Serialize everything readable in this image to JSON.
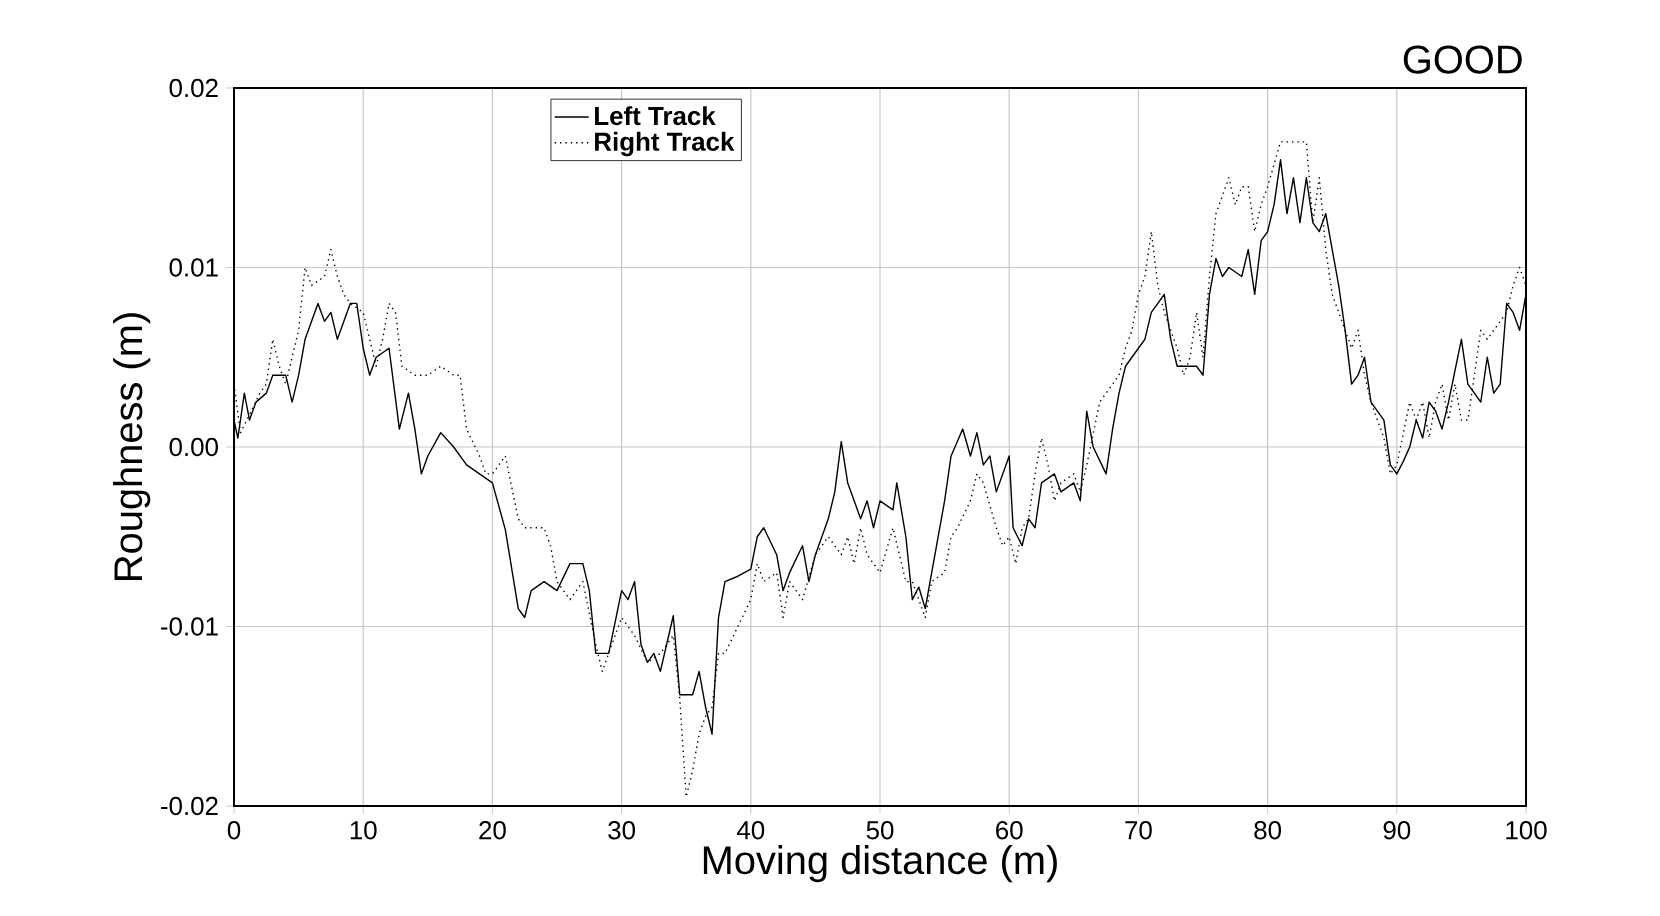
{
  "chart_data": {
    "type": "line",
    "title": "GOOD",
    "xlabel": "Moving distance (m)",
    "ylabel": "Roughness (m)",
    "xlim": [
      0,
      100
    ],
    "ylim": [
      -0.02,
      0.02
    ],
    "xticks": [
      0,
      10,
      20,
      30,
      40,
      50,
      60,
      70,
      80,
      90,
      100
    ],
    "yticks": [
      {
        "value": -0.02,
        "label": "-0.02"
      },
      {
        "value": -0.01,
        "label": "-0.01"
      },
      {
        "value": 0,
        "label": "0.00"
      },
      {
        "value": 0.01,
        "label": "0.01"
      },
      {
        "value": 0.02,
        "label": "0.02"
      }
    ],
    "grid": true,
    "legend": "top left",
    "series": [
      {
        "name": "Left Track",
        "color": "#000000",
        "line_style": "solid",
        "x": [
          0,
          0.3,
          0.8,
          1.2,
          1.7,
          2.5,
          3,
          4,
          4.5,
          5,
          5.5,
          6.5,
          7,
          7.5,
          8,
          9,
          9.5,
          10,
          10.5,
          11,
          12,
          12.8,
          13.5,
          14,
          14.5,
          15,
          16,
          17,
          18,
          19,
          20,
          21,
          22,
          22.5,
          23,
          24,
          25,
          26,
          27,
          27.5,
          28,
          29,
          30,
          30.5,
          31,
          31.5,
          32,
          32.5,
          33,
          34,
          34.5,
          35.5,
          36,
          36.5,
          37,
          37.5,
          38,
          39,
          40,
          40.5,
          41,
          42,
          42.5,
          43,
          44,
          44.5,
          45,
          46,
          46.5,
          47,
          47.5,
          48,
          48.5,
          49,
          49.5,
          50,
          51,
          51.3,
          52,
          52.5,
          53,
          53.5,
          54,
          55,
          55.5,
          56.4,
          57,
          57.5,
          58,
          58.5,
          59,
          60,
          60.3,
          61,
          61.5,
          62,
          62.5,
          63.5,
          64,
          65,
          65.5,
          66,
          66.5,
          67.5,
          68,
          68.5,
          69,
          70,
          70.5,
          71,
          71.5,
          72,
          72.5,
          73,
          74,
          74.5,
          75,
          75.5,
          76,
          76.5,
          77,
          78,
          78.5,
          79,
          79.5,
          80,
          80.5,
          81,
          81.5,
          82,
          82.5,
          83,
          83.5,
          84,
          84.5,
          85,
          85.5,
          86,
          86.5,
          87,
          87.5,
          88,
          89,
          89.5,
          90,
          90.5,
          91,
          91.5,
          92,
          92.5,
          93,
          93.5,
          94,
          95,
          95.5,
          96,
          96.5,
          97,
          97.5,
          98,
          98.5,
          99,
          99.5,
          100
        ],
        "values": [
          0.0015,
          0.0005,
          0.003,
          0.0015,
          0.0025,
          0.003,
          0.004,
          0.004,
          0.0025,
          0.004,
          0.006,
          0.008,
          0.007,
          0.0075,
          0.006,
          0.008,
          0.008,
          0.0055,
          0.004,
          0.005,
          0.0055,
          0.001,
          0.003,
          0.001,
          -0.0015,
          -0.0005,
          0.0008,
          0.0,
          -0.001,
          -0.0015,
          -0.002,
          -0.0046,
          -0.009,
          -0.0095,
          -0.008,
          -0.0075,
          -0.008,
          -0.0065,
          -0.0065,
          -0.008,
          -0.0115,
          -0.0115,
          -0.008,
          -0.0085,
          -0.0075,
          -0.011,
          -0.012,
          -0.0115,
          -0.0125,
          -0.0094,
          -0.0138,
          -0.0138,
          -0.0125,
          -0.0145,
          -0.016,
          -0.0095,
          -0.0075,
          -0.0072,
          -0.0068,
          -0.005,
          -0.0045,
          -0.006,
          -0.008,
          -0.007,
          -0.0055,
          -0.0075,
          -0.006,
          -0.004,
          -0.0025,
          0.0003,
          -0.002,
          -0.003,
          -0.004,
          -0.003,
          -0.0045,
          -0.003,
          -0.0035,
          -0.002,
          -0.005,
          -0.0085,
          -0.0078,
          -0.009,
          -0.007,
          -0.003,
          -0.0005,
          0.001,
          -0.0005,
          0.0008,
          -0.001,
          -0.0005,
          -0.0025,
          -0.0005,
          -0.0045,
          -0.0055,
          -0.004,
          -0.0045,
          -0.002,
          -0.0015,
          -0.0025,
          -0.002,
          -0.003,
          0.002,
          0.0,
          -0.0015,
          0.001,
          0.003,
          0.0045,
          0.0055,
          0.006,
          0.0075,
          0.008,
          0.0085,
          0.006,
          0.0045,
          0.0045,
          0.0045,
          0.004,
          0.0085,
          0.0105,
          0.0095,
          0.01,
          0.0095,
          0.011,
          0.0085,
          0.0115,
          0.012,
          0.0135,
          0.016,
          0.013,
          0.015,
          0.0125,
          0.015,
          0.0125,
          0.012,
          0.013,
          0.011,
          0.009,
          0.0065,
          0.0035,
          0.004,
          0.005,
          0.0025,
          0.0015,
          -0.001,
          -0.0015,
          -0.0008,
          0.0,
          0.0015,
          0.0005,
          0.0025,
          0.002,
          0.001,
          0.0025,
          0.006,
          0.0035,
          0.003,
          0.0025,
          0.005,
          0.003,
          0.0035,
          0.008,
          0.0075,
          0.0065,
          0.0085
        ]
      },
      {
        "name": "Right Track",
        "color": "#000000",
        "line_style": "dotted",
        "x": [
          0,
          0.5,
          1,
          2,
          2.5,
          3,
          3.5,
          4,
          4.5,
          5,
          5.5,
          6,
          7,
          7.5,
          8,
          8.5,
          9,
          10,
          10.5,
          11,
          11.5,
          12,
          12.5,
          13,
          14,
          15,
          16,
          17,
          17.5,
          18,
          19,
          19.5,
          20,
          20.5,
          21,
          22,
          22.5,
          23,
          24,
          24.5,
          25,
          25.5,
          26,
          27,
          28,
          28.5,
          29,
          30,
          31,
          32,
          33,
          34,
          34.5,
          35,
          35.5,
          36,
          36.5,
          37,
          37.5,
          38,
          39,
          40,
          40.5,
          41,
          42,
          42.5,
          43,
          44,
          45,
          46,
          47,
          47.5,
          48,
          48.5,
          49,
          50,
          51,
          51.5,
          52,
          52.5,
          53,
          53.5,
          54,
          55,
          55.5,
          56,
          57,
          57.5,
          58,
          59,
          59.5,
          60,
          60.5,
          61,
          61.5,
          62,
          62.5,
          63,
          63.5,
          64,
          65,
          65.5,
          66,
          67,
          67.5,
          68,
          68.5,
          69,
          69.5,
          70,
          70.5,
          71,
          71.5,
          72,
          73,
          73.5,
          74,
          74.5,
          75,
          75.5,
          76,
          76.5,
          77,
          77.5,
          78,
          78.5,
          79,
          79.5,
          80,
          81,
          82,
          83,
          83.5,
          84,
          84.5,
          85,
          86,
          86.5,
          87,
          87.5,
          88,
          89,
          89.5,
          90,
          91,
          91.5,
          92,
          92.5,
          93,
          93.5,
          94,
          94.5,
          95,
          95.5,
          96,
          96.5,
          97,
          97.5,
          98,
          98.5,
          99,
          99.5,
          100
        ],
        "values": [
          0.0035,
          0.0008,
          0.0015,
          0.003,
          0.0035,
          0.006,
          0.0045,
          0.0035,
          0.005,
          0.0065,
          0.01,
          0.009,
          0.0095,
          0.011,
          0.0095,
          0.0085,
          0.008,
          0.0075,
          0.006,
          0.0045,
          0.006,
          0.008,
          0.0075,
          0.0045,
          0.004,
          0.004,
          0.0045,
          0.004,
          0.004,
          0.001,
          -0.0005,
          -0.0015,
          -0.0015,
          -0.001,
          -0.0005,
          -0.004,
          -0.0045,
          -0.0045,
          -0.0045,
          -0.0055,
          -0.0075,
          -0.008,
          -0.0085,
          -0.0075,
          -0.011,
          -0.0125,
          -0.0115,
          -0.0095,
          -0.0105,
          -0.012,
          -0.0115,
          -0.0105,
          -0.014,
          -0.0195,
          -0.018,
          -0.016,
          -0.015,
          -0.0145,
          -0.0115,
          -0.0115,
          -0.01,
          -0.0085,
          -0.0065,
          -0.0075,
          -0.007,
          -0.0095,
          -0.0075,
          -0.0085,
          -0.006,
          -0.005,
          -0.006,
          -0.005,
          -0.0065,
          -0.0045,
          -0.006,
          -0.007,
          -0.0045,
          -0.006,
          -0.0075,
          -0.0075,
          -0.0085,
          -0.0095,
          -0.0075,
          -0.007,
          -0.005,
          -0.0045,
          -0.003,
          -0.0015,
          -0.002,
          -0.0045,
          -0.0055,
          -0.005,
          -0.0065,
          -0.0045,
          -0.004,
          -0.0015,
          0.0005,
          -0.001,
          -0.003,
          -0.002,
          -0.0015,
          -0.0025,
          -0.001,
          0.0025,
          0.003,
          0.0035,
          0.004,
          0.0055,
          0.0065,
          0.0085,
          0.0095,
          0.012,
          0.009,
          0.0075,
          0.0055,
          0.004,
          0.005,
          0.0075,
          0.005,
          0.0095,
          0.013,
          0.014,
          0.015,
          0.0135,
          0.0145,
          0.0145,
          0.012,
          0.0135,
          0.0145,
          0.017,
          0.017,
          0.017,
          0.0125,
          0.015,
          0.011,
          0.0085,
          0.0065,
          0.0055,
          0.0065,
          0.004,
          0.0025,
          0.0005,
          -0.0015,
          -0.001,
          0.0025,
          0.0015,
          0.0025,
          0.0005,
          0.0025,
          0.0035,
          0.0015,
          0.0035,
          0.0015,
          0.0015,
          0.004,
          0.0065,
          0.006,
          0.0065,
          0.007,
          0.0075,
          0.009,
          0.01,
          0.009
        ]
      }
    ]
  }
}
